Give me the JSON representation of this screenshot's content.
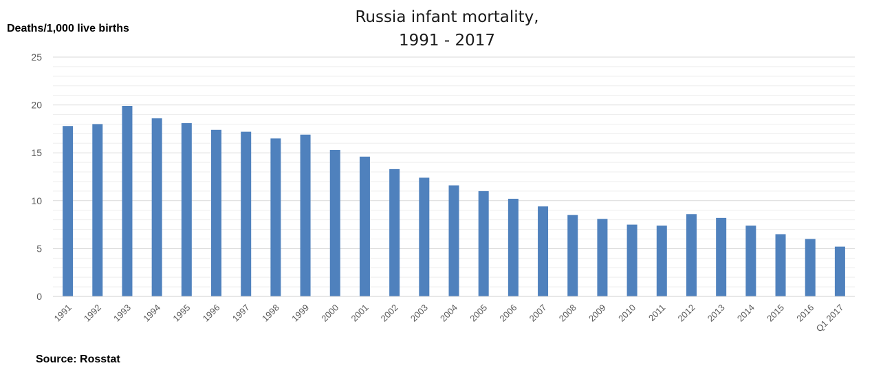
{
  "chart_data": {
    "type": "bar",
    "title": "Russia infant mortality,",
    "subtitle": "1991 - 2017",
    "ylabel": "Deaths/1,000 live births",
    "source": "Source: Rosstat",
    "categories": [
      "1991",
      "1992",
      "1993",
      "1994",
      "1995",
      "1996",
      "1997",
      "1998",
      "1999",
      "2000",
      "2001",
      "2002",
      "2003",
      "2004",
      "2005",
      "2006",
      "2007",
      "2008",
      "2009",
      "2010",
      "2011",
      "2012",
      "2013",
      "2014",
      "2015",
      "2016",
      "Q1 2017"
    ],
    "values": [
      17.8,
      18.0,
      19.9,
      18.6,
      18.1,
      17.4,
      17.2,
      16.5,
      16.9,
      15.3,
      14.6,
      13.3,
      12.4,
      11.6,
      11.0,
      10.2,
      9.4,
      8.5,
      8.1,
      7.5,
      7.4,
      8.6,
      8.2,
      7.4,
      6.5,
      6.0,
      5.2
    ],
    "yticks": [
      "0",
      "5",
      "10",
      "15",
      "20",
      "25"
    ],
    "ylim": [
      0,
      25
    ],
    "grid": true,
    "bar_color": "#4f81bd",
    "grid_color": "#d9d9d9"
  }
}
